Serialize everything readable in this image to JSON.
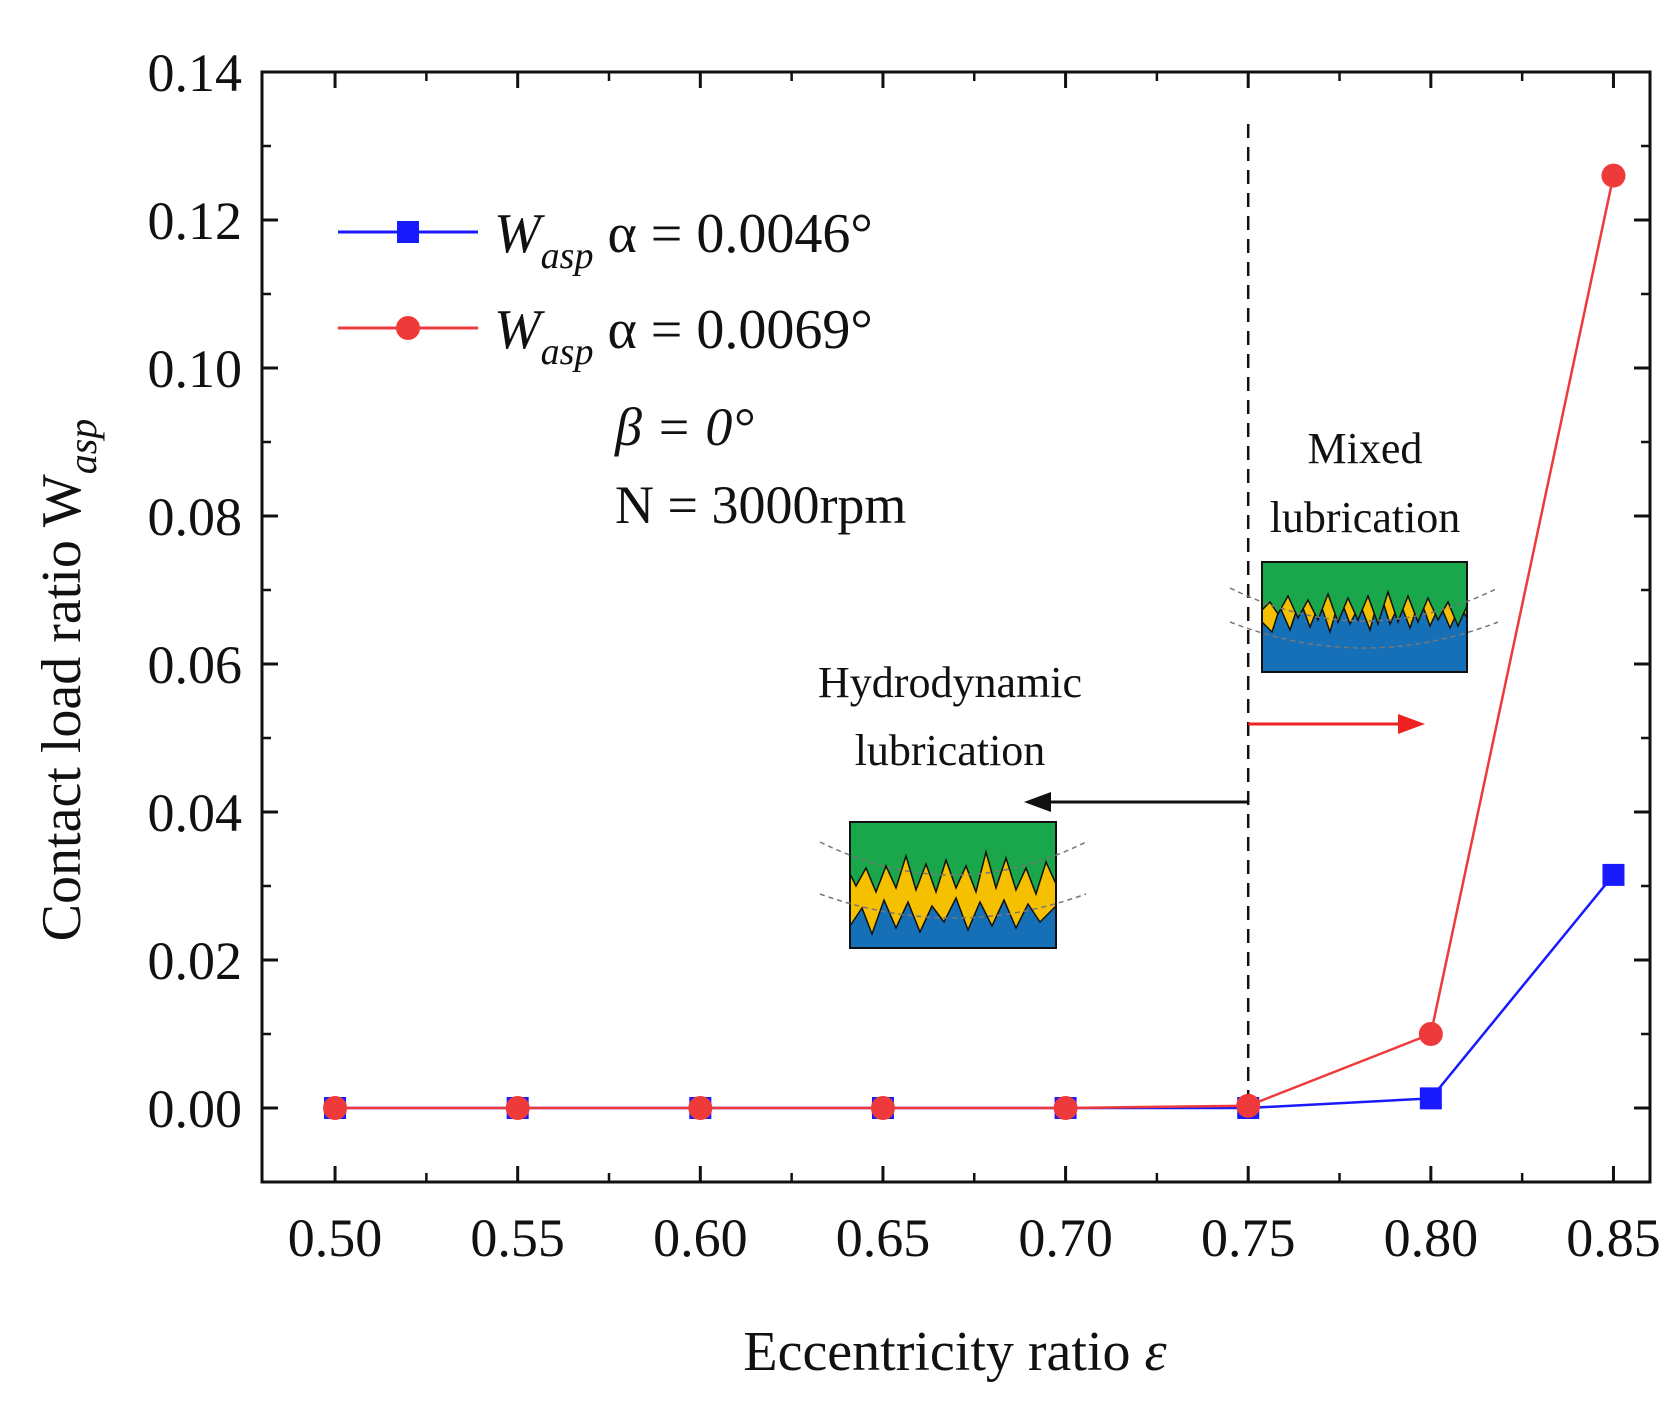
{
  "chart_data": {
    "type": "line",
    "title": "",
    "xlabel": "Eccentricity ratio",
    "xlabel_symbol": "ε",
    "ylabel": "Contact load ratio W",
    "ylabel_sub": "asp",
    "xlim": [
      0.48,
      0.86
    ],
    "ylim": [
      -0.01,
      0.14
    ],
    "xticks": [
      0.5,
      0.55,
      0.6,
      0.65,
      0.7,
      0.75,
      0.8,
      0.85
    ],
    "xtick_labels": [
      "0.50",
      "0.55",
      "0.60",
      "0.65",
      "0.70",
      "0.75",
      "0.80",
      "0.85"
    ],
    "yticks": [
      0.0,
      0.02,
      0.04,
      0.06,
      0.08,
      0.1,
      0.12,
      0.14
    ],
    "ytick_labels": [
      "0.00",
      "0.02",
      "0.04",
      "0.06",
      "0.08",
      "0.10",
      "0.12",
      "0.14"
    ],
    "x": [
      0.5,
      0.55,
      0.6,
      0.65,
      0.7,
      0.75,
      0.8,
      0.85
    ],
    "series": [
      {
        "name": "W_asp α = 0.0046°",
        "legend_main": "W",
        "legend_sub": "asp",
        "legend_rest": " α = 0.0046°",
        "color": "#1a1aff",
        "marker": "square",
        "values": [
          0.0,
          0.0,
          0.0,
          0.0,
          0.0,
          0.0,
          0.0013,
          0.0315
        ]
      },
      {
        "name": "W_asp α = 0.0069°",
        "legend_main": "W",
        "legend_sub": "asp",
        "legend_rest": " α = 0.0069°",
        "color": "#ee3a3a",
        "marker": "circle",
        "values": [
          0.0,
          0.0,
          0.0,
          0.0,
          0.0,
          0.0003,
          0.01,
          0.126
        ]
      }
    ],
    "legend_position": "top-left",
    "annotations": {
      "beta": "β = 0°",
      "speed": "N = 3000rpm",
      "mixed_line1": "Mixed",
      "mixed_line2": "lubrication",
      "mixed_color": "#ee2222",
      "hydro_line1": "Hydrodynamic",
      "hydro_line2": "lubrication",
      "hydro_color": "#111111",
      "divider_x": 0.75
    },
    "colors": {
      "upper_surface": "#1aa64a",
      "lubricant": "#f5c000",
      "lower_surface": "#1570b8"
    }
  }
}
